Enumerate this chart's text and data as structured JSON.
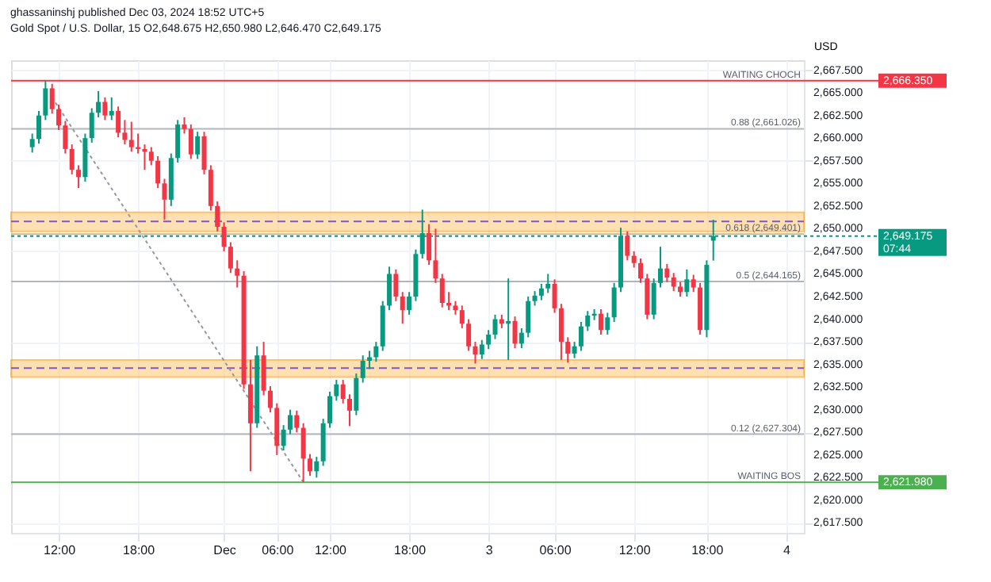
{
  "chart_data": {
    "type": "candlestick",
    "title": "ghassaninshj published Dec 03, 2024 18:52 UTC+5",
    "subtitle": "Gold Spot / U.S. Dollar, 15  O2,648.675 H2,650.980 L2,646.470 C2,649.175",
    "ylabel": "USD",
    "categories": [
      null,
      null,
      null,
      null,
      "12:00",
      null,
      null,
      null,
      null,
      null,
      null,
      null,
      null,
      null,
      null,
      null,
      "18:00",
      null,
      null,
      null,
      null,
      null,
      null,
      null,
      null,
      null,
      null,
      null,
      null,
      "Dec",
      null,
      null,
      null,
      null,
      null,
      null,
      null,
      "06:00",
      null,
      null,
      null,
      null,
      null,
      null,
      null,
      "12:00",
      null,
      null,
      null,
      null,
      null,
      null,
      null,
      null,
      null,
      null,
      null,
      "18:00",
      null,
      null,
      null,
      null,
      null,
      null,
      null,
      null,
      null,
      null,
      null,
      "3",
      null,
      null,
      null,
      null,
      null,
      null,
      null,
      null,
      null,
      "06:00",
      null,
      null,
      null,
      null,
      null,
      null,
      null,
      null,
      null,
      null,
      null,
      "12:00",
      null,
      null,
      null,
      null,
      null,
      null,
      null,
      null,
      null,
      null,
      "18:00",
      null,
      null,
      null,
      null,
      null,
      null,
      null,
      null,
      null,
      null,
      null,
      "4"
    ],
    "ohlc": [
      [
        2659.0,
        2660.5,
        2658.4,
        2659.9
      ],
      [
        2659.9,
        2663.0,
        2659.4,
        2662.5
      ],
      [
        2662.5,
        2666.35,
        2662.0,
        2665.5
      ],
      [
        2665.5,
        2666.0,
        2662.7,
        2663.2
      ],
      [
        2663.2,
        2663.7,
        2660.9,
        2661.4
      ],
      [
        2661.4,
        2661.9,
        2658.3,
        2658.8
      ],
      [
        2658.8,
        2659.3,
        2656.0,
        2656.5
      ],
      [
        2656.5,
        2657.0,
        2654.5,
        2655.7
      ],
      [
        2655.7,
        2660.5,
        2655.2,
        2660.0
      ],
      [
        2660.0,
        2663.3,
        2659.5,
        2662.8
      ],
      [
        2662.8,
        2665.2,
        2662.3,
        2664.0
      ],
      [
        2664.0,
        2664.5,
        2662.0,
        2662.5
      ],
      [
        2662.5,
        2664.5,
        2662.0,
        2663.0
      ],
      [
        2663.0,
        2663.5,
        2660.1,
        2660.6
      ],
      [
        2660.6,
        2662.0,
        2659.3,
        2659.8
      ],
      [
        2659.8,
        2661.8,
        2658.5,
        2659.0
      ],
      [
        2659.0,
        2660.5,
        2658.3,
        2658.8
      ],
      [
        2658.8,
        2659.3,
        2656.5,
        2658.5
      ],
      [
        2658.5,
        2659.0,
        2657.0,
        2657.5
      ],
      [
        2657.5,
        2658.0,
        2654.5,
        2655.0
      ],
      [
        2655.0,
        2655.5,
        2651.0,
        2653.2
      ],
      [
        2653.2,
        2658.3,
        2652.5,
        2657.8
      ],
      [
        2657.8,
        2662.0,
        2657.3,
        2661.5
      ],
      [
        2661.5,
        2662.3,
        2660.5,
        2661.0
      ],
      [
        2661.0,
        2661.5,
        2657.7,
        2658.2
      ],
      [
        2658.2,
        2660.7,
        2657.7,
        2660.2
      ],
      [
        2660.2,
        2660.7,
        2656.0,
        2656.5
      ],
      [
        2656.5,
        2657.0,
        2652.0,
        2652.5
      ],
      [
        2652.5,
        2653.0,
        2649.7,
        2650.2
      ],
      [
        2650.2,
        2650.7,
        2647.5,
        2648.0
      ],
      [
        2648.0,
        2648.5,
        2645.1,
        2645.6
      ],
      [
        2645.6,
        2646.5,
        2643.5,
        2644.8
      ],
      [
        2644.8,
        2645.3,
        2632.3,
        2632.8
      ],
      [
        2632.8,
        2635.5,
        2623.2,
        2628.5
      ],
      [
        2628.5,
        2637.0,
        2628.0,
        2636.0
      ],
      [
        2636.0,
        2637.5,
        2631.6,
        2632.1
      ],
      [
        2632.1,
        2632.6,
        2629.7,
        2630.2
      ],
      [
        2630.2,
        2630.7,
        2625.0,
        2626.0
      ],
      [
        2626.0,
        2628.3,
        2625.5,
        2627.8
      ],
      [
        2627.8,
        2630.0,
        2627.3,
        2629.4
      ],
      [
        2629.4,
        2629.9,
        2627.5,
        2628.0
      ],
      [
        2628.0,
        2628.5,
        2621.98,
        2624.6
      ],
      [
        2624.6,
        2625.1,
        2622.7,
        2623.2
      ],
      [
        2623.2,
        2624.8,
        2622.5,
        2624.3
      ],
      [
        2624.3,
        2629.0,
        2623.8,
        2628.5
      ],
      [
        2628.5,
        2632.0,
        2628.0,
        2631.5
      ],
      [
        2631.5,
        2633.3,
        2631.0,
        2632.8
      ],
      [
        2632.8,
        2633.3,
        2630.7,
        2631.2
      ],
      [
        2631.2,
        2631.7,
        2628.2,
        2629.9
      ],
      [
        2629.9,
        2634.0,
        2629.4,
        2633.5
      ],
      [
        2633.5,
        2636.0,
        2633.0,
        2635.4
      ],
      [
        2635.4,
        2636.5,
        2634.5,
        2635.8
      ],
      [
        2635.8,
        2637.5,
        2635.3,
        2637.0
      ],
      [
        2637.0,
        2642.0,
        2636.5,
        2641.5
      ],
      [
        2641.5,
        2645.8,
        2641.0,
        2645.0
      ],
      [
        2645.0,
        2645.5,
        2642.0,
        2642.5
      ],
      [
        2642.5,
        2643.0,
        2639.5,
        2641.0
      ],
      [
        2641.0,
        2643.0,
        2640.5,
        2642.5
      ],
      [
        2642.5,
        2647.7,
        2642.0,
        2647.2
      ],
      [
        2647.2,
        2652.1,
        2646.7,
        2649.5
      ],
      [
        2649.5,
        2650.5,
        2646.0,
        2646.5
      ],
      [
        2646.5,
        2650.0,
        2644.0,
        2644.5
      ],
      [
        2644.5,
        2645.0,
        2641.3,
        2641.8
      ],
      [
        2641.8,
        2643.0,
        2641.0,
        2641.5
      ],
      [
        2641.5,
        2642.0,
        2640.5,
        2641.0
      ],
      [
        2641.0,
        2641.5,
        2639.0,
        2639.5
      ],
      [
        2639.5,
        2640.0,
        2636.5,
        2637.0
      ],
      [
        2637.0,
        2637.5,
        2635.1,
        2636.1
      ],
      [
        2636.1,
        2637.7,
        2635.6,
        2637.2
      ],
      [
        2637.2,
        2638.8,
        2636.7,
        2638.3
      ],
      [
        2638.3,
        2640.5,
        2637.8,
        2640.0
      ],
      [
        2640.0,
        2640.5,
        2639.0,
        2639.5
      ],
      [
        2639.5,
        2644.5,
        2635.5,
        2639.8
      ],
      [
        2639.8,
        2640.3,
        2636.8,
        2637.3
      ],
      [
        2637.3,
        2639.0,
        2636.8,
        2638.5
      ],
      [
        2638.5,
        2642.5,
        2638.0,
        2642.0
      ],
      [
        2642.0,
        2643.1,
        2641.5,
        2642.6
      ],
      [
        2642.6,
        2643.9,
        2642.1,
        2643.4
      ],
      [
        2643.4,
        2645.0,
        2642.9,
        2643.9
      ],
      [
        2643.9,
        2644.4,
        2640.7,
        2641.2
      ],
      [
        2641.2,
        2641.7,
        2635.5,
        2637.5
      ],
      [
        2637.5,
        2638.0,
        2635.2,
        2636.2
      ],
      [
        2636.2,
        2637.5,
        2635.7,
        2637.0
      ],
      [
        2637.0,
        2639.7,
        2636.5,
        2639.2
      ],
      [
        2639.2,
        2640.9,
        2638.7,
        2640.4
      ],
      [
        2640.4,
        2641.1,
        2639.9,
        2640.6
      ],
      [
        2640.6,
        2641.1,
        2638.3,
        2638.8
      ],
      [
        2638.8,
        2640.7,
        2638.3,
        2640.2
      ],
      [
        2640.2,
        2644.0,
        2639.7,
        2643.5
      ],
      [
        2643.5,
        2650.1,
        2643.0,
        2649.2
      ],
      [
        2649.2,
        2649.7,
        2646.5,
        2647.0
      ],
      [
        2647.0,
        2647.5,
        2645.7,
        2646.2
      ],
      [
        2646.2,
        2646.7,
        2644.0,
        2644.5
      ],
      [
        2644.5,
        2645.0,
        2640.0,
        2640.5
      ],
      [
        2640.5,
        2644.5,
        2640.0,
        2644.0
      ],
      [
        2644.0,
        2648.0,
        2643.5,
        2645.6
      ],
      [
        2645.6,
        2646.1,
        2644.1,
        2644.6
      ],
      [
        2644.6,
        2645.1,
        2643.1,
        2643.6
      ],
      [
        2643.6,
        2644.1,
        2642.5,
        2643.0
      ],
      [
        2643.0,
        2645.5,
        2642.5,
        2644.4
      ],
      [
        2644.4,
        2644.9,
        2643.0,
        2643.5
      ],
      [
        2643.5,
        2644.0,
        2638.3,
        2638.8
      ],
      [
        2638.8,
        2646.5,
        2638.0,
        2646.0
      ],
      [
        2648.675,
        2650.98,
        2646.47,
        2649.175
      ],
      null,
      null,
      null,
      null,
      null,
      null,
      null,
      null,
      null,
      null,
      null
    ],
    "colors": [
      "#089981",
      "#089981",
      "#089981",
      "#f23645",
      "#f23645",
      "#f23645",
      "#f23645",
      "#f23645",
      "#089981",
      "#089981",
      "#089981",
      "#f23645",
      "#089981",
      "#f23645",
      "#f23645",
      "#f23645",
      "#f23645",
      "#f23645",
      "#f23645",
      "#f23645",
      "#f23645",
      "#089981",
      "#089981",
      "#f23645",
      "#f23645",
      "#089981",
      "#f23645",
      "#f23645",
      "#f23645",
      "#f23645",
      "#f23645",
      "#f23645",
      "#f23645",
      "#f23645",
      "#089981",
      "#f23645",
      "#f23645",
      "#f23645",
      "#089981",
      "#089981",
      "#f23645",
      "#f23645",
      "#f23645",
      "#089981",
      "#089981",
      "#089981",
      "#089981",
      "#f23645",
      "#f23645",
      "#089981",
      "#089981",
      "#089981",
      "#089981",
      "#089981",
      "#089981",
      "#f23645",
      "#f23645",
      "#089981",
      "#089981",
      "#089981",
      "#f23645",
      "#f23645",
      "#f23645",
      "#f23645",
      "#f23645",
      "#f23645",
      "#f23645",
      "#f23645",
      "#089981",
      "#089981",
      "#089981",
      "#f23645",
      "#089981",
      "#f23645",
      "#089981",
      "#089981",
      "#089981",
      "#089981",
      "#089981",
      "#f23645",
      "#f23645",
      "#f23645",
      "#089981",
      "#089981",
      "#089981",
      "#089981",
      "#f23645",
      "#089981",
      "#089981",
      "#089981",
      "#f23645",
      "#f23645",
      "#f23645",
      "#f23645",
      "#089981",
      "#089981",
      "#f23645",
      "#f23645",
      "#f23645",
      "#089981",
      "#f23645",
      "#f23645",
      "#089981",
      "#089981",
      null,
      null,
      null,
      null,
      null,
      null,
      null,
      null,
      null,
      null,
      null
    ],
    "series": [
      {
        "type": "line",
        "values": [
          null,
          null,
          null,
          2664.5,
          null,
          null,
          null,
          null,
          null,
          null,
          null,
          null,
          null,
          null,
          null,
          null,
          null,
          null,
          null,
          null,
          null,
          null,
          null,
          null,
          null,
          null,
          null,
          null,
          null,
          null,
          null,
          null,
          null,
          null,
          null,
          null,
          null,
          null,
          null,
          null,
          null,
          2622.0,
          null,
          null,
          null,
          null,
          null,
          null,
          null,
          null,
          null,
          null,
          null,
          null,
          null,
          null,
          null,
          null,
          null,
          null,
          null,
          null,
          null,
          null,
          null,
          null,
          null,
          null,
          null,
          null,
          null,
          null,
          null,
          null,
          null,
          null,
          null,
          null,
          null,
          null,
          null,
          null,
          null,
          null,
          null,
          null,
          null,
          null,
          null,
          null,
          null,
          null,
          null,
          null,
          null,
          null,
          null,
          null,
          null,
          null,
          null,
          null,
          null,
          null,
          null,
          null,
          null,
          null,
          null,
          null,
          null,
          null,
          null,
          null,
          null
        ],
        "color": "#9598a1",
        "line_style": "dotted"
      }
    ],
    "ylim": [
      2616.4,
      2668.6
    ],
    "yticks": [
      {
        "value": 2617.5,
        "label": "2,617.500"
      },
      {
        "value": 2620,
        "label": "2,620.000"
      },
      {
        "value": 2622.5,
        "label": "2,622.500"
      },
      {
        "value": 2625,
        "label": "2,625.000"
      },
      {
        "value": 2627.5,
        "label": "2,627.500"
      },
      {
        "value": 2630,
        "label": "2,630.000"
      },
      {
        "value": 2632.5,
        "label": "2,632.500"
      },
      {
        "value": 2635,
        "label": "2,635.000"
      },
      {
        "value": 2637.5,
        "label": "2,637.500"
      },
      {
        "value": 2640,
        "label": "2,640.000"
      },
      {
        "value": 2642.5,
        "label": "2,642.500"
      },
      {
        "value": 2645,
        "label": "2,645.000"
      },
      {
        "value": 2647.5,
        "label": "2,647.500"
      },
      {
        "value": 2650,
        "label": "2,650.000"
      },
      {
        "value": 2652.5,
        "label": "2,652.500"
      },
      {
        "value": 2655,
        "label": "2,655.000"
      },
      {
        "value": 2657.5,
        "label": "2,657.500"
      },
      {
        "value": 2660,
        "label": "2,660.000"
      },
      {
        "value": 2662.5,
        "label": "2,662.500"
      },
      {
        "value": 2665,
        "label": "2,665.000"
      },
      {
        "value": 2667.5,
        "label": "2,667.500"
      }
    ],
    "grid": true,
    "bands": [
      {
        "axis": "y",
        "from": 2649.7,
        "to": 2651.8,
        "color": "#ffcc80"
      },
      {
        "axis": "y",
        "from": 2633.6,
        "to": 2635.5,
        "color": "#ffcc80"
      }
    ],
    "ref_lines": [
      {
        "axis": "y",
        "value": 2666.35,
        "label": "2,666.350",
        "color": "#f23645",
        "line_style": "solid"
      },
      {
        "axis": "y",
        "value": 2661.026,
        "color": "#b2b5be",
        "line_style": "solid"
      },
      {
        "axis": "y",
        "value": 2650.8,
        "color": "#7e57c2",
        "line_style": "dashed"
      },
      {
        "axis": "y",
        "value": 2649.401,
        "color": "#c8b99a",
        "line_style": "solid"
      },
      {
        "axis": "y",
        "value": 2649.175,
        "label": "2,649.175\n07:44",
        "color": "#089981",
        "line_style": "dotted"
      },
      {
        "axis": "y",
        "value": 2644.165,
        "color": "#b2b5be",
        "line_style": "solid"
      },
      {
        "axis": "y",
        "value": 2634.6,
        "color": "#7e57c2",
        "line_style": "dashed"
      },
      {
        "axis": "y",
        "value": 2627.304,
        "color": "#b2b5be",
        "line_style": "solid"
      },
      {
        "axis": "y",
        "value": 2621.98,
        "label": "2,621.980",
        "color": "#4caf50",
        "line_style": "solid"
      }
    ],
    "annotations": [
      {
        "text": "WAITING CHOCH",
        "y": 2666.35
      },
      {
        "text": "0.88 (2,661.026)",
        "y": 2661.026
      },
      {
        "text": "0.618 (2,649.401)",
        "y": 2649.401
      },
      {
        "text": "0.5 (2,644.165)",
        "y": 2644.165
      },
      {
        "text": "0.12 (2,627.304)",
        "y": 2627.304
      },
      {
        "text": "WAITING BOS",
        "y": 2621.98
      }
    ]
  }
}
